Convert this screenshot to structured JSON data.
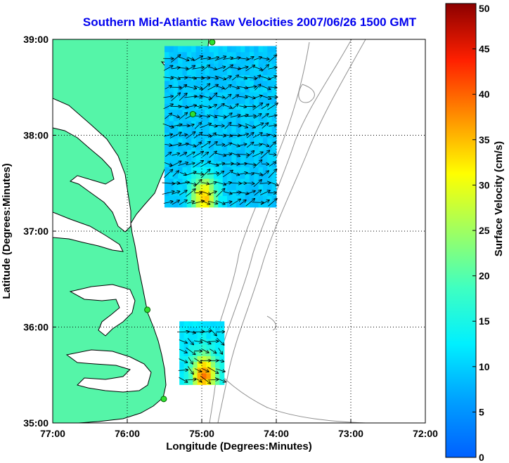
{
  "chart_data": [
    {
      "type": "heatmap",
      "title": "Southern Mid-Atlantic Raw Velocities 2007/06/26 1500 GMT",
      "xlabel": "Longitude (Degrees:Minutes)",
      "ylabel": "Latitude (Degrees:Minutes)",
      "xlim": [
        -77,
        -72
      ],
      "ylim": [
        35,
        39
      ],
      "xticks": [
        -77,
        -76,
        -75,
        -74,
        -73,
        -72
      ],
      "xtick_labels": [
        "77:00",
        "76:00",
        "75:00",
        "74:00",
        "73:00",
        "72:00"
      ],
      "yticks": [
        35,
        36,
        37,
        38,
        39
      ],
      "ytick_labels": [
        "35:00",
        "36:00",
        "37:00",
        "38:00",
        "39:00"
      ],
      "grid": true,
      "colors": {
        "land": "#55f5a8",
        "title": "#0000ee",
        "bathymetry": "#909090"
      },
      "stations": [
        {
          "lon": -74.86,
          "lat": 38.97
        },
        {
          "lon": -75.12,
          "lat": 38.22
        },
        {
          "lon": -75.73,
          "lat": 36.18
        },
        {
          "lon": -75.51,
          "lat": 35.25
        }
      ],
      "velocity_regions": [
        {
          "lon_range": [
            -75.5,
            -74.05
          ],
          "lat_range": [
            37.25,
            38.9
          ],
          "typical_speed_cm_s": 8,
          "max_speed_cm_s": 33,
          "max_at": {
            "lon": -75.0,
            "lat": 37.33
          }
        },
        {
          "lon_range": [
            -75.3,
            -74.7
          ],
          "lat_range": [
            35.4,
            36.05
          ],
          "typical_speed_cm_s": 10,
          "max_speed_cm_s": 37,
          "max_at": {
            "lon": -75.0,
            "lat": 35.48
          }
        }
      ]
    },
    {
      "type": "colorbar",
      "label": "Surface Velocity (cm/s)",
      "range": [
        0,
        50
      ],
      "ticks": [
        0,
        5,
        10,
        15,
        20,
        25,
        30,
        35,
        40,
        45,
        50
      ],
      "tick_labels": [
        "0",
        "5",
        "10",
        "15",
        "20",
        "25",
        "30",
        "35",
        "40",
        "45",
        "50"
      ],
      "colormap": "jet"
    }
  ]
}
